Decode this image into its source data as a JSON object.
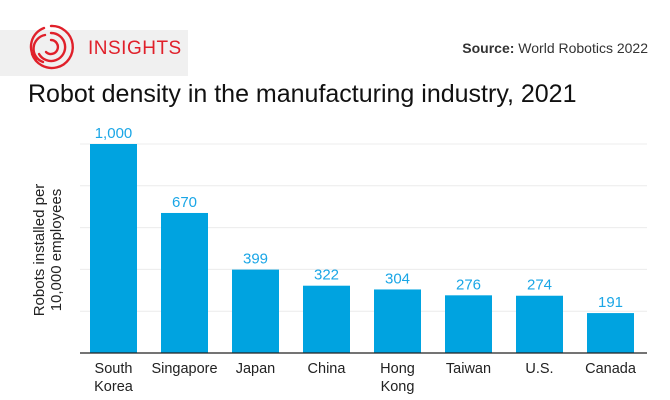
{
  "brand": {
    "name": "INSIGHTS",
    "color": "#e0202a"
  },
  "source": {
    "label": "Source:",
    "text": "World Robotics 2022"
  },
  "chart_data": {
    "type": "bar",
    "title": "Robot density in the manufacturing industry, 2021",
    "ylabel": "Robots installed per 10,000 employees",
    "ylabel_lines": [
      "Robots installed per",
      "10,000 employees"
    ],
    "xlabel": "",
    "categories": [
      [
        "South",
        "Korea"
      ],
      [
        "Singapore"
      ],
      [
        "Japan"
      ],
      [
        "China"
      ],
      [
        "Hong",
        "Kong"
      ],
      [
        "Taiwan"
      ],
      [
        "U.S."
      ],
      [
        "Canada"
      ]
    ],
    "values": [
      1000,
      670,
      399,
      322,
      304,
      276,
      274,
      191
    ],
    "value_labels": [
      "1,000",
      "670",
      "399",
      "322",
      "304",
      "276",
      "274",
      "191"
    ],
    "ylim": [
      0,
      1000
    ],
    "gridlines": [
      200,
      400,
      600,
      800,
      1000
    ],
    "grid": true,
    "bar_color": "#00a3e0",
    "label_color": "#1aa6e6"
  }
}
